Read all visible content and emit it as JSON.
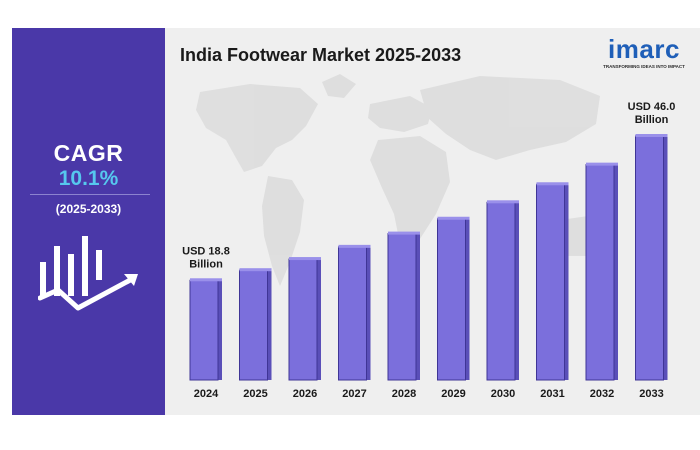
{
  "chart_data": {
    "type": "bar",
    "title": "India Footwear Market 2025-2033",
    "categories": [
      "2024",
      "2025",
      "2026",
      "2027",
      "2028",
      "2029",
      "2030",
      "2031",
      "2032",
      "2033"
    ],
    "values": [
      18.8,
      20.7,
      22.8,
      25.1,
      27.6,
      30.4,
      33.5,
      36.9,
      40.6,
      46.0
    ],
    "annotations": [
      {
        "category": "2024",
        "line1": "USD 18.8",
        "line2": "Billion"
      },
      {
        "category": "2033",
        "line1": "USD 46.0",
        "line2": "Billion"
      }
    ],
    "xlabel": "",
    "ylabel": "",
    "ylim": [
      0,
      46.0
    ],
    "grid": false,
    "bar_color": "#7b6fdc"
  },
  "sidebar": {
    "cagr_label": "CAGR",
    "cagr_value": "10.1%",
    "period": "(2025-2033)"
  },
  "brand": {
    "name": "imarc",
    "tagline": "TRANSFORMING IDEAS INTO IMPACT",
    "color": "#1f5fb8"
  },
  "colors": {
    "panel": "#4a38a8",
    "accent": "#56c8ee",
    "background": "#efefef"
  }
}
